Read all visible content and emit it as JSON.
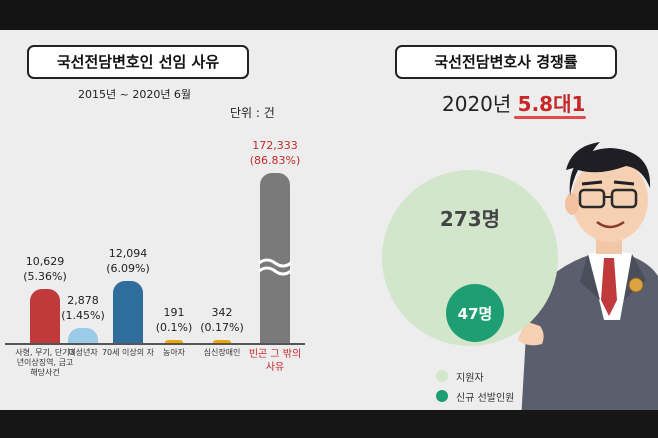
{
  "left": {
    "title": "국선전담변호인 선임 사유",
    "period": "2015년 ~ 2020년 6월",
    "unit": "단위 : 건"
  },
  "right": {
    "title": "국선전담변호사 경쟁률",
    "year": "2020년",
    "ratio": "5.8대1",
    "big_circle_label": "273명",
    "small_circle_label": "47명",
    "legend": [
      "지원자",
      "신규 선발인원"
    ]
  },
  "colors": {
    "red_bar": "#c0393b",
    "lightblue_bar": "#9ccbe9",
    "blue_bar": "#2f6d9c",
    "orange_bar": "#f0a500",
    "gray_bar": "#7a7a7a",
    "applicants": "#d2e6cc",
    "selected": "#1f9e73",
    "highlight": "#c62828"
  },
  "chart_data": [
    {
      "type": "bar",
      "title": "국선전담변호인 선임 사유",
      "subtitle": "2015년 ~ 2020년 6월",
      "unit": "단위 : 건",
      "categories": [
        "사형, 무기, 단기3년이상징역, 금고해당사건",
        "미성년자",
        "70세 이상의 자",
        "농아자",
        "심신장애인",
        "빈곤 그 밖의 사유"
      ],
      "values": [
        10629,
        2878,
        12094,
        191,
        342,
        172333
      ],
      "value_labels": [
        "10,629",
        "2,878",
        "12,094",
        "191",
        "342",
        "172,333"
      ],
      "percent_labels": [
        "(5.36%)",
        "(1.45%)",
        "(6.09%)",
        "(0.1%)",
        "(0.17%)",
        "(86.83%)"
      ],
      "axis_break": true
    },
    {
      "type": "bubble",
      "title": "국선전담변호사 경쟁률",
      "year": "2020년",
      "ratio_label": "5.8대1",
      "series": [
        {
          "name": "지원자",
          "value": 273,
          "label": "273명"
        },
        {
          "name": "신규 선발인원",
          "value": 47,
          "label": "47명"
        }
      ]
    }
  ]
}
